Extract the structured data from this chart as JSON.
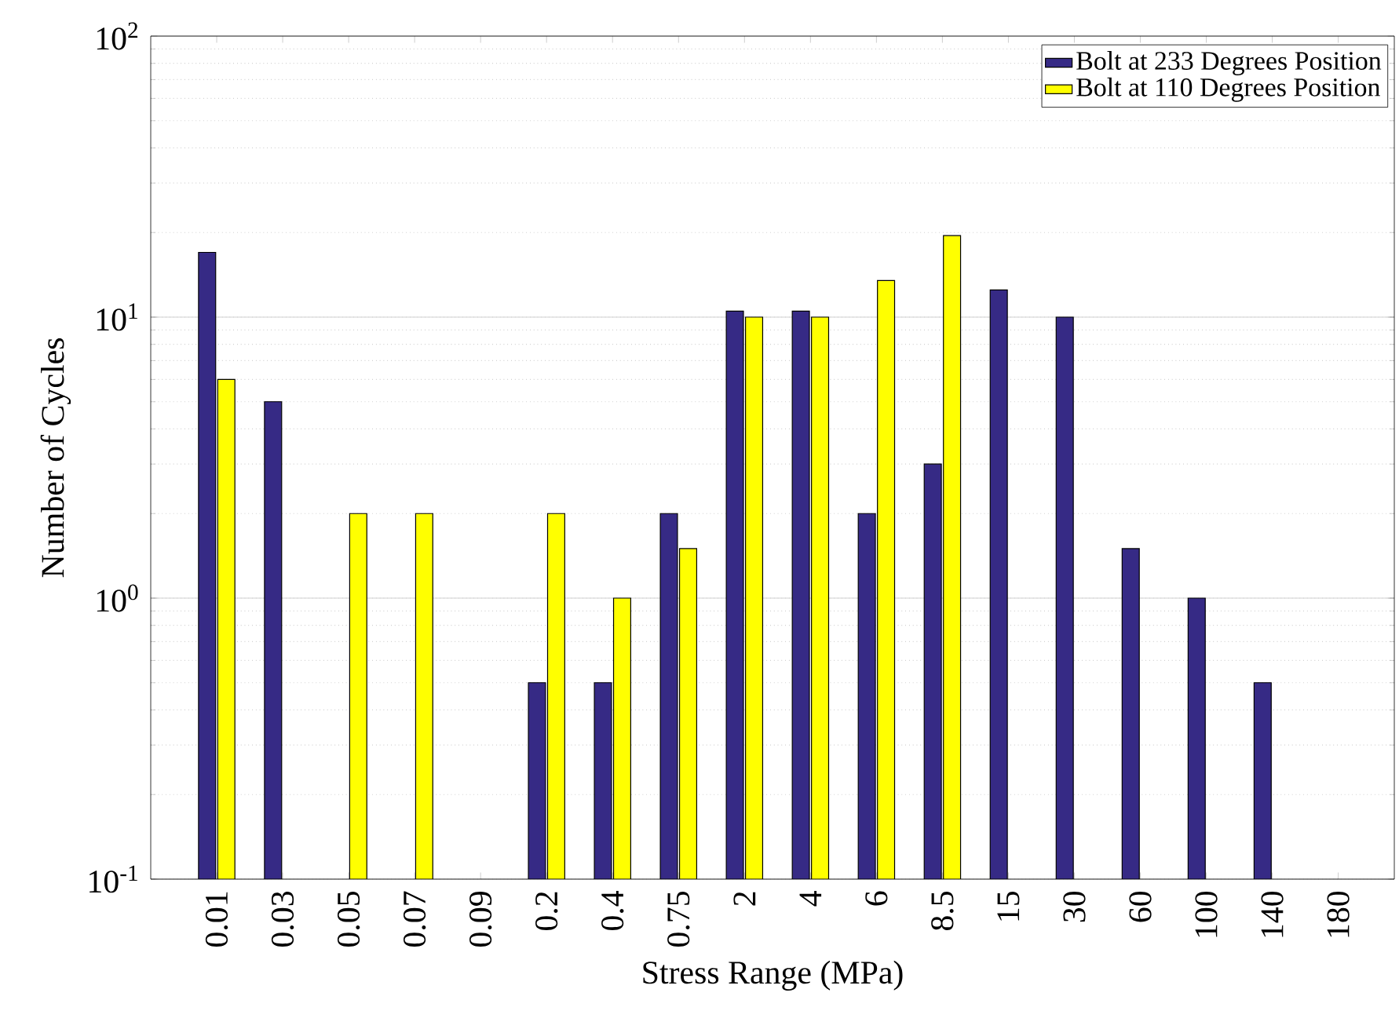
{
  "chart_data": {
    "type": "bar",
    "xlabel": "Stress Range (MPa)",
    "ylabel": "Number of Cycles",
    "categories": [
      "0.01",
      "0.03",
      "0.05",
      "0.07",
      "0.09",
      "0.2",
      "0.4",
      "0.75",
      "2",
      "4",
      "6",
      "8.5",
      "15",
      "30",
      "60",
      "100",
      "140",
      "180"
    ],
    "series": [
      {
        "name": "Bolt at 233 Degrees Position",
        "color": "#362a85",
        "values": [
          17,
          5,
          null,
          null,
          null,
          0.5,
          0.5,
          2,
          10.5,
          10.5,
          2,
          3,
          12.5,
          10,
          1.5,
          1,
          0.5,
          null
        ]
      },
      {
        "name": "Bolt at 110 Degrees Position",
        "color": "#ffff00",
        "values": [
          6,
          null,
          2,
          2,
          null,
          2,
          1,
          1.5,
          10,
          10,
          13.5,
          19.5,
          null,
          null,
          null,
          null,
          null,
          null
        ]
      }
    ],
    "log": "y",
    "ylim": [
      0.1,
      100
    ],
    "yticks": [
      {
        "value": 0.1,
        "label": "10$^{-1}$"
      },
      {
        "value": 1,
        "label": "10$^{0}$"
      },
      {
        "value": 10,
        "label": "10$^{1}$"
      },
      {
        "value": 100,
        "label": "10$^{2}$"
      }
    ],
    "grid": "y",
    "legend": "top right"
  }
}
